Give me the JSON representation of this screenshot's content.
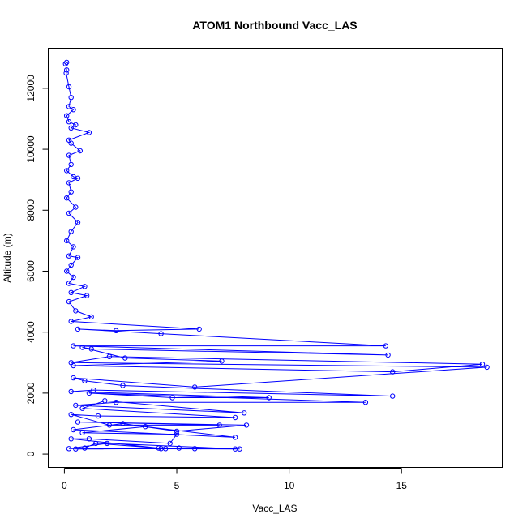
{
  "chart_data": {
    "type": "line",
    "title": "ATOM1 Northbound Vacc_LAS",
    "xlabel": "Vacc_LAS",
    "ylabel": "Altitude (m)",
    "xlim": [
      -0.7,
      19.5
    ],
    "ylim": [
      -450,
      13300
    ],
    "x_ticks": [
      0,
      5,
      10,
      15
    ],
    "y_ticks": [
      0,
      2000,
      4000,
      6000,
      8000,
      10000,
      12000
    ],
    "grid": false,
    "legend": "none",
    "series": [
      {
        "color": "#0000ff",
        "marker": "open-circle",
        "points": [
          [
            0.1,
            12850
          ],
          [
            0.05,
            12800
          ],
          [
            0.1,
            12600
          ],
          [
            0.08,
            12500
          ],
          [
            0.2,
            12050
          ],
          [
            0.3,
            11700
          ],
          [
            0.2,
            11400
          ],
          [
            0.4,
            11300
          ],
          [
            0.1,
            11100
          ],
          [
            0.2,
            10900
          ],
          [
            0.5,
            10800
          ],
          [
            0.3,
            10700
          ],
          [
            1.1,
            10550
          ],
          [
            0.2,
            10300
          ],
          [
            0.3,
            10200
          ],
          [
            0.7,
            9950
          ],
          [
            0.2,
            9800
          ],
          [
            0.3,
            9500
          ],
          [
            0.1,
            9300
          ],
          [
            0.4,
            9100
          ],
          [
            0.6,
            9050
          ],
          [
            0.2,
            8900
          ],
          [
            0.3,
            8600
          ],
          [
            0.1,
            8400
          ],
          [
            0.5,
            8100
          ],
          [
            0.2,
            7900
          ],
          [
            0.6,
            7600
          ],
          [
            0.3,
            7300
          ],
          [
            0.1,
            7000
          ],
          [
            0.4,
            6800
          ],
          [
            0.2,
            6500
          ],
          [
            0.6,
            6450
          ],
          [
            0.3,
            6200
          ],
          [
            0.1,
            6000
          ],
          [
            0.4,
            5800
          ],
          [
            0.2,
            5600
          ],
          [
            0.9,
            5500
          ],
          [
            0.3,
            5300
          ],
          [
            1.0,
            5200
          ],
          [
            0.2,
            5000
          ],
          [
            0.5,
            4700
          ],
          [
            1.2,
            4500
          ],
          [
            0.3,
            4350
          ],
          [
            6.0,
            4100
          ],
          [
            2.3,
            4050
          ],
          [
            0.6,
            4100
          ],
          [
            4.3,
            3950
          ],
          [
            14.3,
            3550
          ],
          [
            0.4,
            3550
          ],
          [
            14.4,
            3250
          ],
          [
            1.2,
            3450
          ],
          [
            0.8,
            3500
          ],
          [
            2.7,
            3150
          ],
          [
            7.0,
            3050
          ],
          [
            0.4,
            2900
          ],
          [
            14.6,
            2700
          ],
          [
            18.6,
            2950
          ],
          [
            2.0,
            3200
          ],
          [
            0.3,
            3000
          ],
          [
            18.8,
            2850
          ],
          [
            5.8,
            2200
          ],
          [
            0.4,
            2500
          ],
          [
            0.9,
            2400
          ],
          [
            2.6,
            2250
          ],
          [
            14.6,
            1900
          ],
          [
            1.3,
            2100
          ],
          [
            0.3,
            2050
          ],
          [
            9.1,
            1850
          ],
          [
            4.8,
            1850
          ],
          [
            1.1,
            2000
          ],
          [
            13.4,
            1700
          ],
          [
            2.3,
            1700
          ],
          [
            0.5,
            1600
          ],
          [
            8.0,
            1350
          ],
          [
            1.8,
            1750
          ],
          [
            0.8,
            1500
          ],
          [
            7.6,
            1200
          ],
          [
            1.5,
            1250
          ],
          [
            0.3,
            1300
          ],
          [
            2.0,
            950
          ],
          [
            6.9,
            950
          ],
          [
            0.6,
            1050
          ],
          [
            8.1,
            950
          ],
          [
            5.0,
            750
          ],
          [
            2.6,
            1000
          ],
          [
            0.4,
            800
          ],
          [
            7.6,
            550
          ],
          [
            3.6,
            900
          ],
          [
            0.8,
            700
          ],
          [
            5.0,
            650
          ],
          [
            4.7,
            350
          ],
          [
            1.1,
            500
          ],
          [
            0.3,
            500
          ],
          [
            4.2,
            200
          ],
          [
            1.4,
            350
          ],
          [
            0.9,
            200
          ],
          [
            5.1,
            200
          ],
          [
            4.3,
            180
          ],
          [
            5.8,
            180
          ],
          [
            7.6,
            170
          ],
          [
            0.2,
            180
          ],
          [
            1.9,
            350
          ],
          [
            7.8,
            170
          ],
          [
            4.5,
            180
          ],
          [
            0.5,
            170
          ]
        ]
      }
    ]
  }
}
